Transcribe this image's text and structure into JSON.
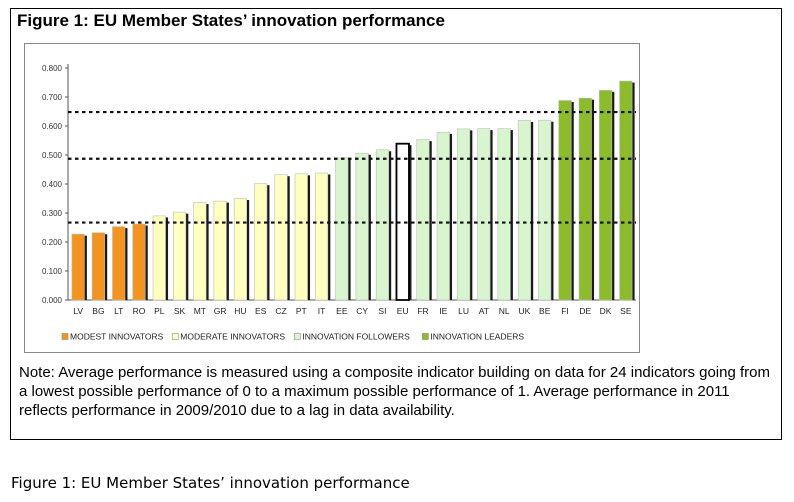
{
  "figure_title": "Figure 1: EU Member States’ innovation performance",
  "note": "Note: Average performance is measured using a composite indicator building on data for 24 indicators going from a lowest possible performance of 0 to a maximum possible performance of 1. Average performance in 2011 reflects performance in 2009/2010 due to a lag in data availability.",
  "caption": "Figure 1: EU Member States’ innovation performance",
  "colors": {
    "modest": "#f39420",
    "moderate": "#ffffc0",
    "followers": "#d9f5d0",
    "leaders": "#8cbc2c",
    "eu": "#ffffff"
  },
  "chart_data": {
    "type": "bar",
    "ylim": [
      0,
      0.8
    ],
    "yticks": [
      "0.000",
      "0.100",
      "0.200",
      "0.300",
      "0.400",
      "0.500",
      "0.600",
      "0.700",
      "0.800"
    ],
    "reference_lines": [
      0.267,
      0.487,
      0.648
    ],
    "categories": [
      "LV",
      "BG",
      "LT",
      "RO",
      "PL",
      "SK",
      "MT",
      "GR",
      "HU",
      "ES",
      "CZ",
      "PT",
      "IT",
      "EE",
      "CY",
      "SI",
      "EU",
      "FR",
      "IE",
      "LU",
      "AT",
      "NL",
      "UK",
      "BE",
      "FI",
      "DE",
      "DK",
      "SE"
    ],
    "values": [
      0.227,
      0.232,
      0.253,
      0.262,
      0.29,
      0.303,
      0.336,
      0.341,
      0.35,
      0.401,
      0.432,
      0.435,
      0.438,
      0.49,
      0.506,
      0.518,
      0.539,
      0.553,
      0.578,
      0.59,
      0.591,
      0.591,
      0.619,
      0.62,
      0.688,
      0.696,
      0.723,
      0.755
    ],
    "groups": [
      "modest",
      "modest",
      "modest",
      "modest",
      "moderate",
      "moderate",
      "moderate",
      "moderate",
      "moderate",
      "moderate",
      "moderate",
      "moderate",
      "moderate",
      "followers",
      "followers",
      "followers",
      "eu",
      "followers",
      "followers",
      "followers",
      "followers",
      "followers",
      "followers",
      "followers",
      "leaders",
      "leaders",
      "leaders",
      "leaders"
    ],
    "legend": [
      {
        "label": "MODEST INNOVATORS",
        "group": "modest"
      },
      {
        "label": "MODERATE INNOVATORS",
        "group": "moderate"
      },
      {
        "label": "INNOVATION FOLLOWERS",
        "group": "followers"
      },
      {
        "label": "INNOVATION LEADERS",
        "group": "leaders"
      }
    ]
  }
}
